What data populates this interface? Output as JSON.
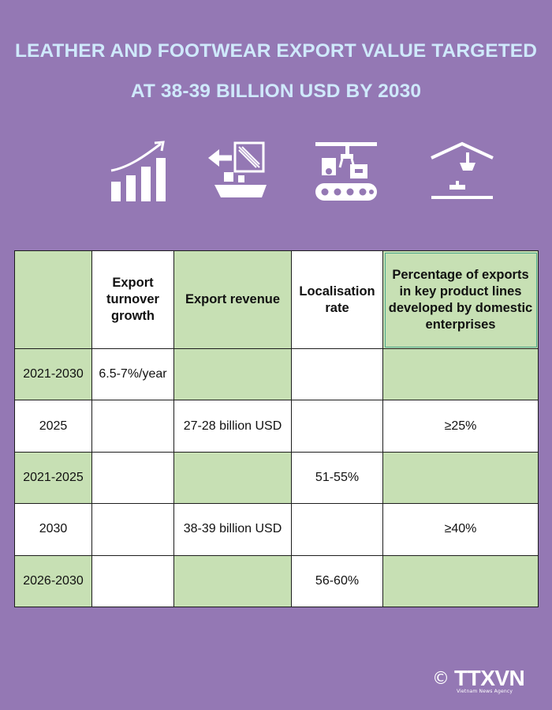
{
  "title": {
    "line1": "LEATHER AND FOOTWEAR EXPORT VALUE TARGETED",
    "line2": "AT 38-39 BILLION USD BY 2030"
  },
  "icons": [
    "bar-chart-growth-icon",
    "export-shipping-icon",
    "factory-conveyor-icon",
    "domestic-enterprise-icon"
  ],
  "colors": {
    "background": "#9478b4",
    "title": "#cfe9fb",
    "cell_green": "#c7e0b4",
    "cell_white": "#ffffff"
  },
  "table": {
    "headers": [
      "",
      "Export turnover growth",
      "Export revenue",
      "Localisation rate",
      "Percentage of exports in key product lines developed by domestic enterprises"
    ],
    "rows": [
      [
        "2021-2030",
        "6.5-7%/year",
        "",
        "",
        ""
      ],
      [
        "2025",
        "",
        "27-28 billion USD",
        "",
        "≥25%"
      ],
      [
        "2021-2025",
        "",
        "",
        "51-55%",
        ""
      ],
      [
        "2030",
        "",
        "38-39 billion USD",
        "",
        "≥40%"
      ],
      [
        "2026-2030",
        "",
        "",
        "56-60%",
        ""
      ]
    ]
  },
  "logo": {
    "copyright": "©",
    "brand": "TTXVN",
    "tagline": "Vietnam News Agency"
  }
}
